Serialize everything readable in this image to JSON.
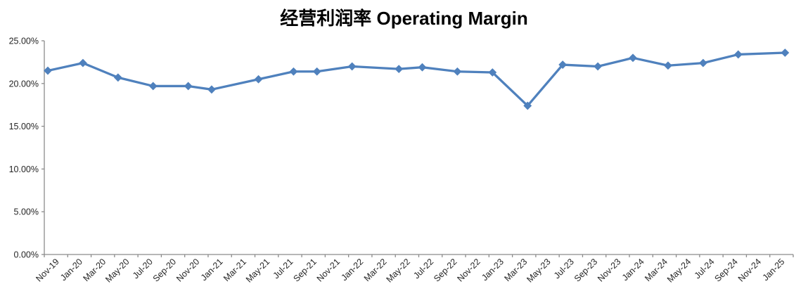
{
  "title": "经营利润率 Operating Margin",
  "colors": {
    "line": "#4F81BD",
    "marker": "#4F81BD",
    "axis": "#8C8C8C",
    "tick_text": "#262626",
    "title_text": "#000000",
    "background": "#FFFFFF"
  },
  "chart_data": {
    "type": "line",
    "title": "经营利润率 Operating Margin",
    "xlabel": "",
    "ylabel": "",
    "ylim": [
      0,
      25
    ],
    "y_tick_step": 5,
    "y_tick_labels": [
      "0.00%",
      "5.00%",
      "10.00%",
      "15.00%",
      "20.00%",
      "25.00%"
    ],
    "x_tick_labels": [
      "Nov-19",
      "Jan-20",
      "Mar-20",
      "May-20",
      "Jul-20",
      "Sep-20",
      "Nov-20",
      "Jan-21",
      "Mar-21",
      "May-21",
      "Jul-21",
      "Sep-21",
      "Nov-21",
      "Jan-22",
      "Mar-22",
      "May-22",
      "Jul-22",
      "Sep-22",
      "Nov-22",
      "Jan-23",
      "Mar-23",
      "May-23",
      "Jul-23",
      "Sep-23",
      "Nov-23",
      "Jan-24",
      "Mar-24",
      "May-24",
      "Jul-24",
      "Sep-24",
      "Nov-24",
      "Jan-25"
    ],
    "x_axis_months_total": 64,
    "grid": false,
    "legend": "none",
    "series": [
      {
        "name": "经营利润率 Operating Margin",
        "points": [
          {
            "label": "Nov-19",
            "month_offset": 0,
            "value": 21.5
          },
          {
            "label": "Feb-20",
            "month_offset": 3,
            "value": 22.4
          },
          {
            "label": "May-20",
            "month_offset": 6,
            "value": 20.7
          },
          {
            "label": "Aug-20",
            "month_offset": 9,
            "value": 19.7
          },
          {
            "label": "Nov-20",
            "month_offset": 12,
            "value": 19.7
          },
          {
            "label": "Jan-21",
            "month_offset": 14,
            "value": 19.3
          },
          {
            "label": "May-21",
            "month_offset": 18,
            "value": 20.5
          },
          {
            "label": "Aug-21",
            "month_offset": 21,
            "value": 21.4
          },
          {
            "label": "Oct-21",
            "month_offset": 23,
            "value": 21.4
          },
          {
            "label": "Jan-22",
            "month_offset": 26,
            "value": 22.0
          },
          {
            "label": "May-22",
            "month_offset": 30,
            "value": 21.7
          },
          {
            "label": "Jul-22",
            "month_offset": 32,
            "value": 21.9
          },
          {
            "label": "Oct-22",
            "month_offset": 35,
            "value": 21.4
          },
          {
            "label": "Jan-23",
            "month_offset": 38,
            "value": 21.3
          },
          {
            "label": "Apr-23",
            "month_offset": 41,
            "value": 17.4
          },
          {
            "label": "Jul-23",
            "month_offset": 44,
            "value": 22.2
          },
          {
            "label": "Oct-23",
            "month_offset": 47,
            "value": 22.0
          },
          {
            "label": "Jan-24",
            "month_offset": 50,
            "value": 23.0
          },
          {
            "label": "Apr-24",
            "month_offset": 53,
            "value": 22.1
          },
          {
            "label": "Jul-24",
            "month_offset": 56,
            "value": 22.4
          },
          {
            "label": "Oct-24",
            "month_offset": 59,
            "value": 23.4
          },
          {
            "label": "Jan-25",
            "month_offset": 63,
            "value": 23.6
          }
        ]
      }
    ]
  }
}
